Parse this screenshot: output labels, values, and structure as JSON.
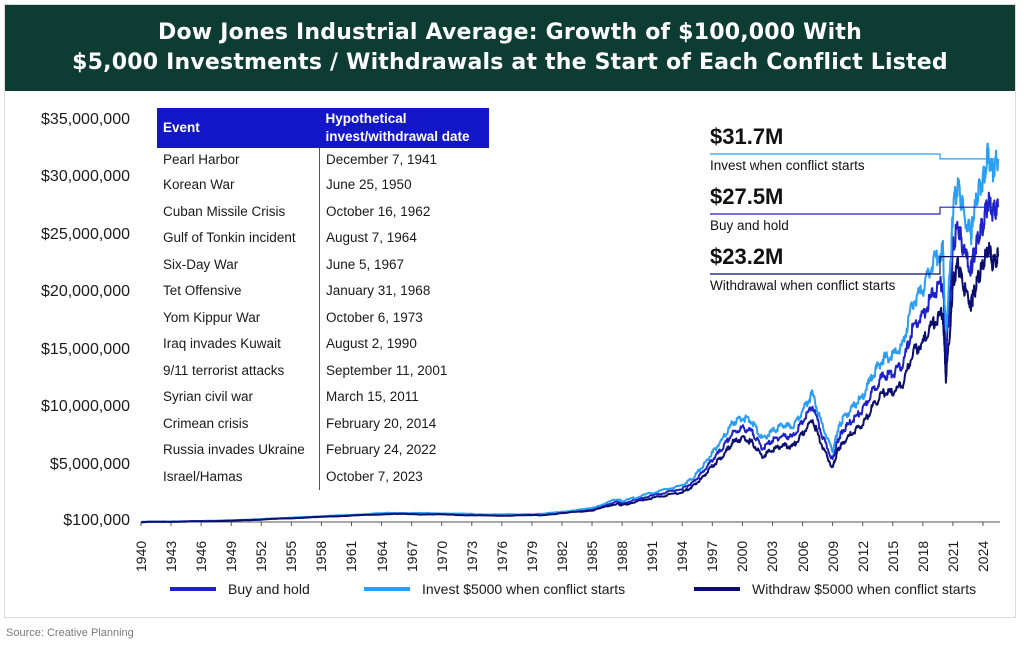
{
  "title": {
    "line1": "Dow Jones Industrial Average: Growth of $100,000 With",
    "line2": "$5,000 Investments / Withdrawals at the Start of Each Conflict Listed"
  },
  "table": {
    "header_event": "Event",
    "header_date": "Hypothetical invest/withdrawal date",
    "rows": [
      {
        "event": "Pearl Harbor",
        "date": "December 7, 1941"
      },
      {
        "event": "Korean War",
        "date": "June 25, 1950"
      },
      {
        "event": "Cuban Missile Crisis",
        "date": "October 16, 1962"
      },
      {
        "event": "Gulf of Tonkin incident",
        "date": "August 7, 1964"
      },
      {
        "event": "Six-Day War",
        "date": "June 5, 1967"
      },
      {
        "event": "Tet Offensive",
        "date": "January 31, 1968"
      },
      {
        "event": "Yom Kippur War",
        "date": "October 6, 1973"
      },
      {
        "event": "Iraq invades Kuwait",
        "date": "August 2, 1990"
      },
      {
        "event": "9/11 terrorist attacks",
        "date": "September 11, 2001"
      },
      {
        "event": "Syrian civil war",
        "date": "March 15, 2011"
      },
      {
        "event": "Crimean crisis",
        "date": "February 20, 2014"
      },
      {
        "event": "Russia invades Ukraine",
        "date": "February 24, 2022"
      },
      {
        "event": "Israel/Hamas",
        "date": "October 7, 2023"
      }
    ]
  },
  "callouts": [
    {
      "value": "$31.7M",
      "label": "Invest when conflict starts"
    },
    {
      "value": "$27.5M",
      "label": "Buy and hold"
    },
    {
      "value": "$23.2M",
      "label": "Withdrawal when conflict starts"
    }
  ],
  "source": "Source: Creative Planning",
  "colors": {
    "title_bg": "#0d3c32",
    "buy_hold": "#1e22c8",
    "invest": "#2a9df4",
    "withdraw": "#0b0f6b",
    "table_header": "#1416c9"
  },
  "chart_data": {
    "type": "line",
    "title": "Dow Jones Industrial Average: Growth of $100,000 With $5,000 Investments / Withdrawals at the Start of Each Conflict Listed",
    "xlabel": "",
    "ylabel": "",
    "y_tick_labels": [
      "$100,000",
      "$5,000,000",
      "$10,000,000",
      "$15,000,000",
      "$20,000,000",
      "$25,000,000",
      "$30,000,000",
      "$35,000,000"
    ],
    "y_tick_values": [
      100000,
      5000000,
      10000000,
      15000000,
      20000000,
      25000000,
      30000000,
      35000000
    ],
    "ylim": [
      100000,
      35000000
    ],
    "x_tick_labels": [
      "1940",
      "1943",
      "1946",
      "1949",
      "1952",
      "1955",
      "1958",
      "1961",
      "1964",
      "1967",
      "1970",
      "1973",
      "1976",
      "1979",
      "1982",
      "1985",
      "1988",
      "1991",
      "1994",
      "1997",
      "2000",
      "2003",
      "2006",
      "2009",
      "2012",
      "2015",
      "2018",
      "2021",
      "2024"
    ],
    "xlim": [
      1940,
      2025.7
    ],
    "x": [
      1940,
      1945,
      1950,
      1955,
      1960,
      1965,
      1970,
      1975,
      1980,
      1985,
      1987.5,
      1988,
      1990,
      1992,
      1994,
      1995,
      1996,
      1997,
      1998,
      1999,
      2000,
      2001,
      2002,
      2003,
      2004,
      2005,
      2006,
      2007,
      2008,
      2009,
      2009.5,
      2010,
      2011,
      2012,
      2013,
      2014,
      2015,
      2016,
      2017,
      2018,
      2019,
      2020,
      2020.3,
      2020.8,
      2021,
      2021.5,
      2022,
      2022.8,
      2023,
      2023.5,
      2024,
      2024.5,
      2025,
      2025.5
    ],
    "series": [
      {
        "name": "Buy and hold",
        "values": [
          100000,
          150000,
          250000,
          450000,
          650000,
          850000,
          800000,
          700000,
          750000,
          1200000,
          1900000,
          1700000,
          2200000,
          2600000,
          3000000,
          3500000,
          4400000,
          5500000,
          6500000,
          7800000,
          8300000,
          7900000,
          6500000,
          7200000,
          7600000,
          7500000,
          8800000,
          10200000,
          7500000,
          5500000,
          7200000,
          8000000,
          9000000,
          9800000,
          11500000,
          12800000,
          13000000,
          13800000,
          17000000,
          18000000,
          20000000,
          21000000,
          14500000,
          20500000,
          24000000,
          26000000,
          24000000,
          22000000,
          23000000,
          25000000,
          26000000,
          28000000,
          27000000,
          27500000
        ]
      },
      {
        "name": "Invest $5000 when conflict starts",
        "values": [
          100000,
          155000,
          260000,
          470000,
          680000,
          900000,
          850000,
          750000,
          800000,
          1300000,
          2100000,
          1900000,
          2400000,
          2850000,
          3300000,
          3900000,
          4900000,
          6100000,
          7300000,
          8700000,
          9200000,
          8800000,
          7300000,
          8000000,
          8500000,
          8400000,
          9800000,
          11300000,
          8400000,
          6200000,
          8100000,
          9000000,
          10100000,
          11000000,
          12900000,
          14300000,
          14600000,
          15500000,
          19200000,
          20300000,
          22700000,
          23800000,
          16400000,
          23300000,
          27300000,
          29600000,
          27300000,
          25000000,
          26400000,
          28700000,
          29900000,
          32200000,
          30800000,
          31700000
        ]
      },
      {
        "name": "Withdraw $5000 when conflict starts",
        "values": [
          100000,
          145000,
          240000,
          430000,
          620000,
          800000,
          750000,
          650000,
          700000,
          1100000,
          1700000,
          1550000,
          2000000,
          2350000,
          2700000,
          3150000,
          3950000,
          4950000,
          5800000,
          7000000,
          7400000,
          7000000,
          5800000,
          6400000,
          6750000,
          6650000,
          7800000,
          9000000,
          6600000,
          4800000,
          6300000,
          7000000,
          7900000,
          8600000,
          10100000,
          11300000,
          11400000,
          12100000,
          14900000,
          15700000,
          17400000,
          18300000,
          12600000,
          17900000,
          20900000,
          22600000,
          20800000,
          19000000,
          19700000,
          21300000,
          22300000,
          24000000,
          22600000,
          23200000
        ]
      }
    ]
  },
  "legend": [
    {
      "label": "Buy and hold"
    },
    {
      "label": "Invest $5000 when conflict starts"
    },
    {
      "label": "Withdraw $5000 when conflict starts"
    }
  ]
}
